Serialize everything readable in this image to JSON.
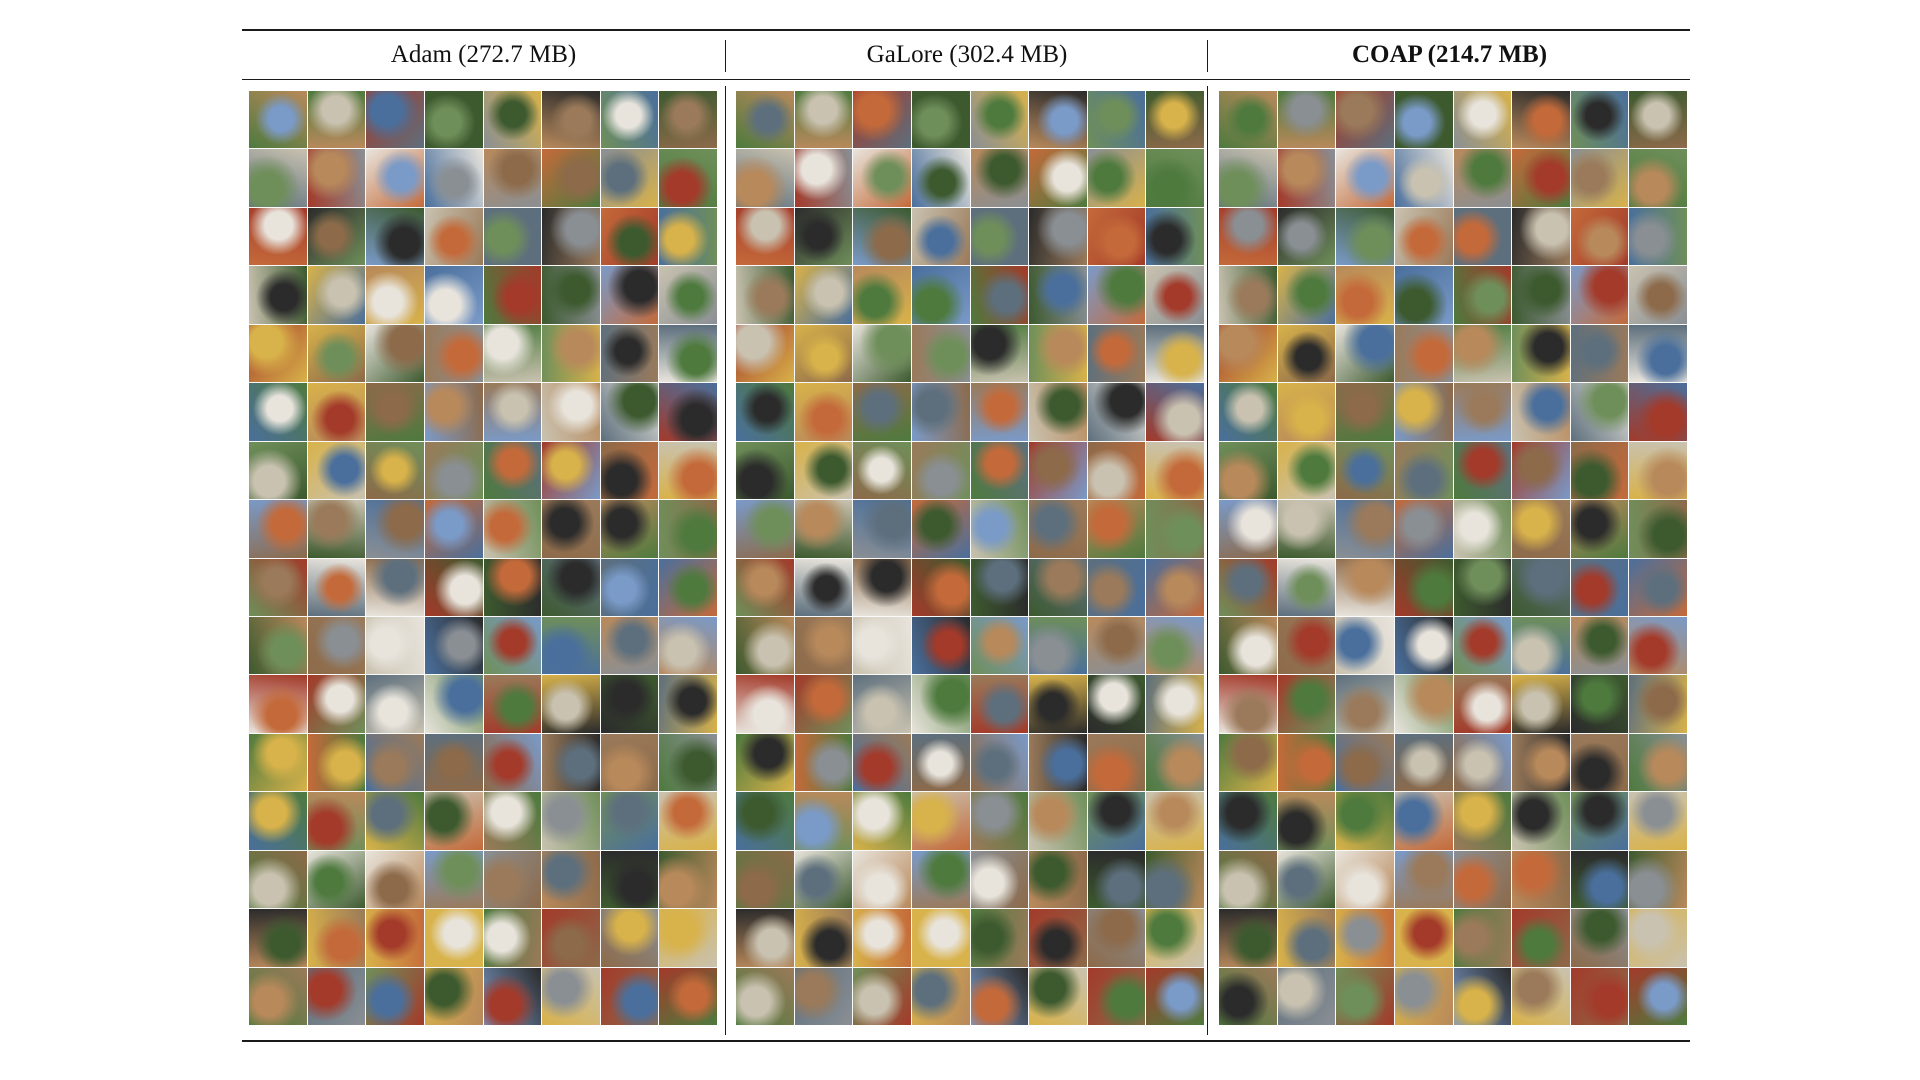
{
  "columns": [
    {
      "header": "Adam (272.7 MB)",
      "bold": false
    },
    {
      "header": "GaLore (302.4 MB)",
      "bold": false
    },
    {
      "header": "COAP (214.7 MB)",
      "bold": true
    }
  ],
  "grid": {
    "rows": 16,
    "cols": 8
  },
  "palette": {
    "rule": "#1a1a1a",
    "tones": [
      "#b8895b",
      "#6f8f5a",
      "#4a6f9c",
      "#8c6a4a",
      "#c9c2b0",
      "#3d5a2f",
      "#a33a2a",
      "#d8b24a",
      "#5d6f7d",
      "#e8e4dc",
      "#2b2b2b",
      "#7a9ac8",
      "#9a7a5a",
      "#c46a3a",
      "#4e7a3e",
      "#8a8f94"
    ]
  }
}
